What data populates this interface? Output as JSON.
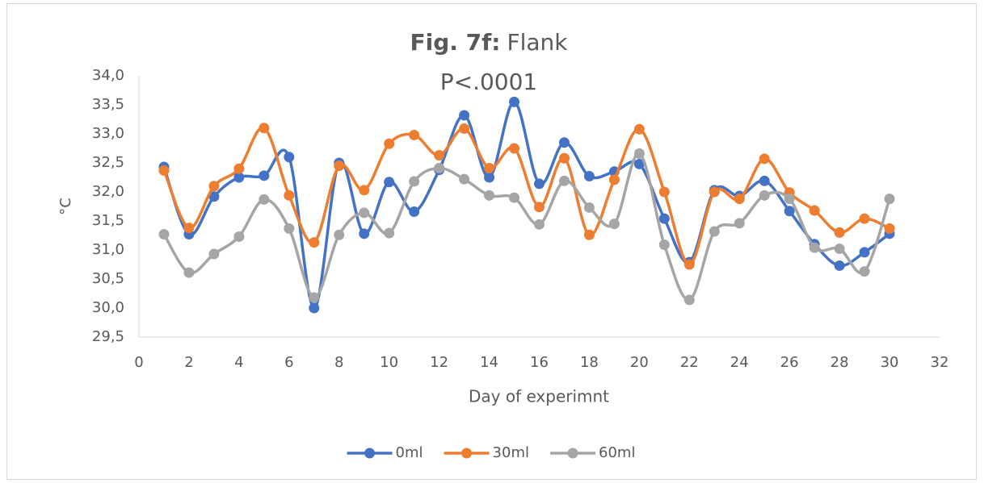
{
  "chart_data": {
    "type": "line",
    "smooth": true,
    "title_label": "Fig. 7f:",
    "title": "Flank",
    "subtitle": "P<.0001",
    "x_label": "Day of experimnt",
    "y_label": "°C",
    "x": [
      1,
      2,
      3,
      4,
      5,
      6,
      7,
      8,
      9,
      10,
      11,
      12,
      13,
      14,
      15,
      16,
      17,
      18,
      19,
      20,
      21,
      22,
      23,
      24,
      25,
      26,
      27,
      28,
      29,
      30
    ],
    "series": [
      {
        "name": "0ml",
        "color": "#4472c4",
        "values": [
          32.43,
          31.27,
          31.92,
          32.25,
          32.28,
          32.6,
          30.0,
          32.5,
          31.28,
          32.17,
          31.66,
          32.38,
          33.32,
          32.25,
          33.55,
          32.14,
          32.85,
          32.27,
          32.35,
          32.48,
          31.54,
          30.79,
          32.03,
          31.93,
          32.19,
          31.67,
          31.1,
          30.73,
          30.96,
          31.28
        ]
      },
      {
        "name": "30ml",
        "color": "#ed7d31",
        "values": [
          32.37,
          31.38,
          32.1,
          32.4,
          33.1,
          31.94,
          31.13,
          32.45,
          32.03,
          32.83,
          32.98,
          32.63,
          33.09,
          32.41,
          32.75,
          31.74,
          32.58,
          31.26,
          32.21,
          33.08,
          32.0,
          30.75,
          32.0,
          31.88,
          32.57,
          31.99,
          31.68,
          31.3,
          31.54,
          31.37
        ]
      },
      {
        "name": "60ml",
        "color": "#a5a5a5",
        "values": [
          31.27,
          30.61,
          30.93,
          31.23,
          31.87,
          31.37,
          30.18,
          31.26,
          31.64,
          31.29,
          32.18,
          32.41,
          32.22,
          31.94,
          31.9,
          31.44,
          32.19,
          31.73,
          31.45,
          32.66,
          31.09,
          30.14,
          31.32,
          31.46,
          31.94,
          31.88,
          31.04,
          31.02,
          30.63,
          31.88
        ]
      }
    ],
    "xlim": [
      0,
      32
    ],
    "xticks": [
      0,
      2,
      4,
      6,
      8,
      10,
      12,
      14,
      16,
      18,
      20,
      22,
      24,
      26,
      28,
      30,
      32
    ],
    "ylim": [
      29.5,
      34.0
    ],
    "yticks": [
      {
        "value": 29.5,
        "label": "29,5"
      },
      {
        "value": 30.0,
        "label": "30,0"
      },
      {
        "value": 30.5,
        "label": "30,5"
      },
      {
        "value": 31.0,
        "label": "31,0"
      },
      {
        "value": 31.5,
        "label": "31,5"
      },
      {
        "value": 32.0,
        "label": "32,0"
      },
      {
        "value": 32.5,
        "label": "32,5"
      },
      {
        "value": 33.0,
        "label": "33,0"
      },
      {
        "value": 33.5,
        "label": "33,5"
      },
      {
        "value": 34.0,
        "label": "34,0"
      }
    ],
    "grid": false,
    "legend": "bottom"
  }
}
